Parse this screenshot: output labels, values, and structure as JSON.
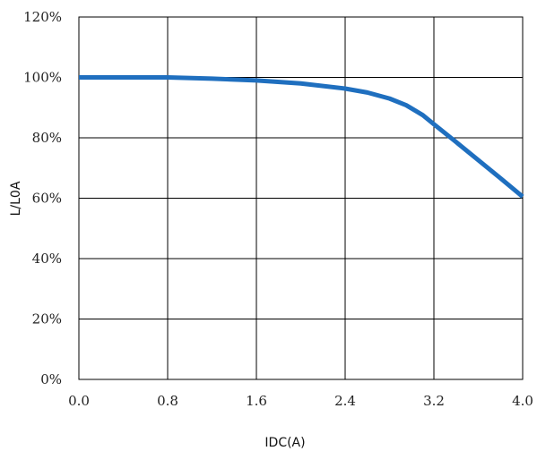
{
  "chart_data": {
    "type": "line",
    "title": "",
    "xlabel": "IDC(A)",
    "ylabel": "L/L0A",
    "xlim": [
      0,
      4.0
    ],
    "ylim": [
      0,
      120
    ],
    "x_ticks": [
      "0.0",
      "0.8",
      "1.6",
      "2.4",
      "3.2",
      "4.0"
    ],
    "x_tick_values": [
      0,
      0.8,
      1.6,
      2.4,
      3.2,
      4.0
    ],
    "y_ticks": [
      "0%",
      "20%",
      "40%",
      "60%",
      "80%",
      "100%",
      "120%"
    ],
    "y_tick_values": [
      0,
      20,
      40,
      60,
      80,
      100,
      120
    ],
    "grid": true,
    "line_color": "#1f6fbf",
    "series": [
      {
        "x": [
          0,
          0.4,
          0.8,
          1.2,
          1.6,
          2.0,
          2.4,
          2.6,
          2.8,
          2.95,
          3.1,
          3.2,
          3.4,
          3.6,
          3.8,
          4.0
        ],
        "y": [
          100,
          100,
          100,
          99.6,
          99,
          98,
          96.3,
          95,
          93,
          90.8,
          87.5,
          84.5,
          78.6,
          72.6,
          66.6,
          60.5
        ]
      }
    ]
  }
}
